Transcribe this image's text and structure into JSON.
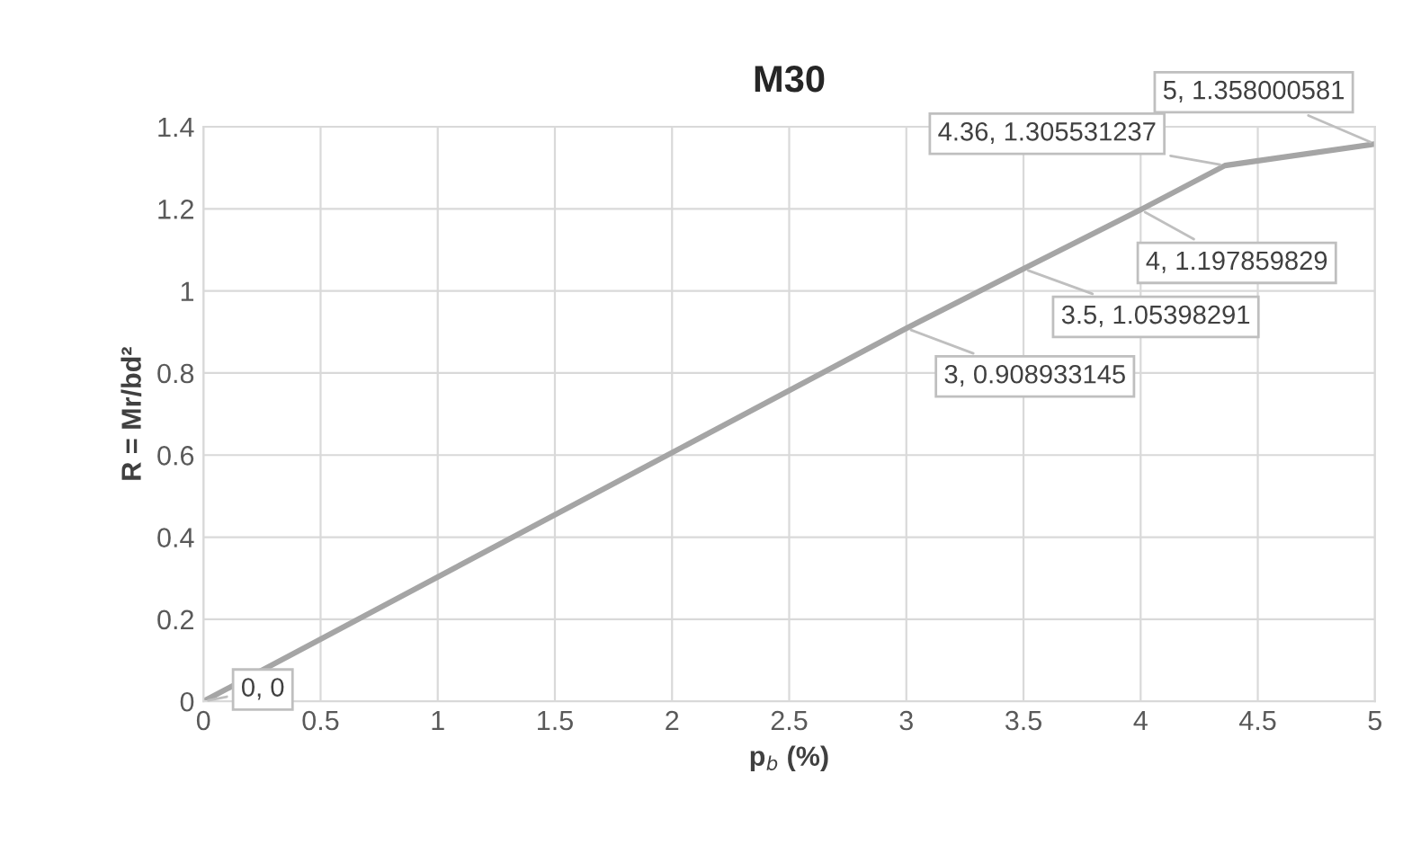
{
  "chart_data": {
    "type": "line",
    "title": "M30",
    "xlabel": "p$_{b}$ (%)",
    "ylabel": "R = Mr/bd²",
    "x": [
      0,
      3,
      3.5,
      4,
      4.36,
      5
    ],
    "series": [
      {
        "color": "#a5a5a5",
        "values": [
          0,
          0.908933145,
          1.05398291,
          1.197859829,
          1.305531237,
          1.358000581
        ],
        "value_labels": [
          "0, 0",
          "3, 0.908933145",
          "3.5, 1.05398291",
          "4, 1.197859829",
          "4.36, 1.305531237",
          "5, 1.358000581"
        ]
      }
    ],
    "xlim": [
      0,
      5
    ],
    "xticks": [
      0,
      0.5,
      1,
      1.5,
      2,
      2.5,
      3,
      3.5,
      4,
      4.5,
      5
    ],
    "ylim": [
      0,
      1.4
    ],
    "yticks": [
      0,
      0.2,
      0.4,
      0.6,
      0.8,
      1,
      1.2,
      1.4
    ],
    "grid": true,
    "marker": "none",
    "line_style": "solid"
  }
}
